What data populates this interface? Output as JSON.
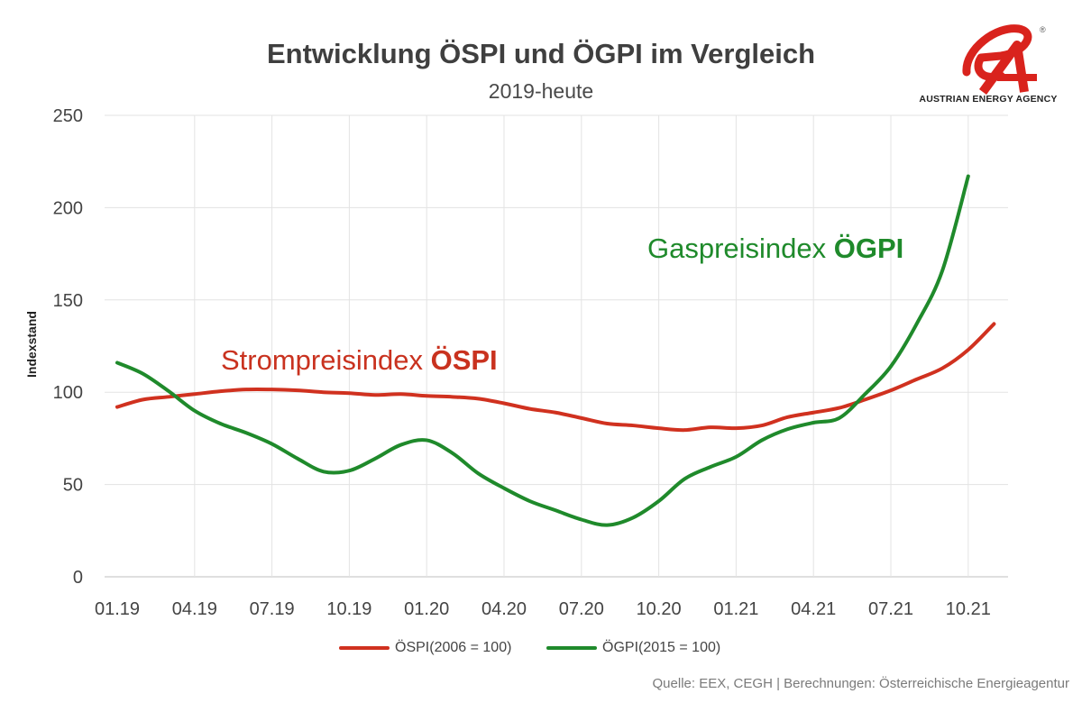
{
  "header": {
    "title": "Entwicklung ÖSPI und ÖGPI im Vergleich",
    "subtitle": "2019-heute"
  },
  "logo": {
    "text": "AUSTRIAN ENERGY AGENCY",
    "registered": "®",
    "color": "#d9231d"
  },
  "source": "Quelle: EEX, CEGH | Berechnungen: Österreichische Energieagentur",
  "annotations": {
    "gas_prefix": "Gaspreisindex ",
    "gas_bold": "ÖGPI",
    "strom_prefix": "Strompreisindex ",
    "strom_bold": "ÖSPI"
  },
  "chart_data": {
    "type": "line",
    "title": "Entwicklung ÖSPI und ÖGPI im Vergleich",
    "subtitle": "2019-heute",
    "xlabel": "",
    "ylabel": "Indexstand",
    "ylim": [
      0,
      250
    ],
    "yticks": [
      0,
      50,
      100,
      150,
      200,
      250
    ],
    "grid": true,
    "legend_position": "bottom",
    "x": [
      "01.19",
      "02.19",
      "03.19",
      "04.19",
      "05.19",
      "06.19",
      "07.19",
      "08.19",
      "09.19",
      "10.19",
      "11.19",
      "12.19",
      "01.20",
      "02.20",
      "03.20",
      "04.20",
      "05.20",
      "06.20",
      "07.20",
      "08.20",
      "09.20",
      "10.20",
      "11.20",
      "12.20",
      "01.21",
      "02.21",
      "03.21",
      "04.21",
      "05.21",
      "06.21",
      "07.21",
      "08.21",
      "09.21",
      "10.21",
      "11.21"
    ],
    "xtick_labels": [
      "01.19",
      "04.19",
      "07.19",
      "10.19",
      "01.20",
      "04.20",
      "07.20",
      "10.20",
      "01.21",
      "04.21",
      "07.21",
      "10.21"
    ],
    "series": [
      {
        "name": "ÖSPI(2006 = 100)",
        "color": "#d0311f",
        "values": [
          92,
          96,
          97.5,
          99,
          100.5,
          101.5,
          101.5,
          101,
          100,
          99.5,
          98.5,
          99,
          98,
          97.5,
          96.5,
          94,
          91,
          89,
          86,
          83,
          82,
          80.5,
          79.5,
          81,
          80.5,
          82,
          86.5,
          89,
          91.5,
          96,
          101,
          107,
          113,
          123,
          137
        ]
      },
      {
        "name": "ÖGPI(2015 = 100)",
        "color": "#1f8a2b",
        "values": [
          116,
          110,
          100.5,
          90,
          83,
          78,
          72,
          64,
          57,
          57.5,
          64,
          71.5,
          74,
          67,
          56,
          48,
          41,
          36,
          31,
          28,
          32,
          41,
          53,
          59.5,
          65,
          74,
          80,
          83.5,
          86,
          99,
          114,
          137,
          166,
          217,
          null
        ]
      }
    ]
  }
}
